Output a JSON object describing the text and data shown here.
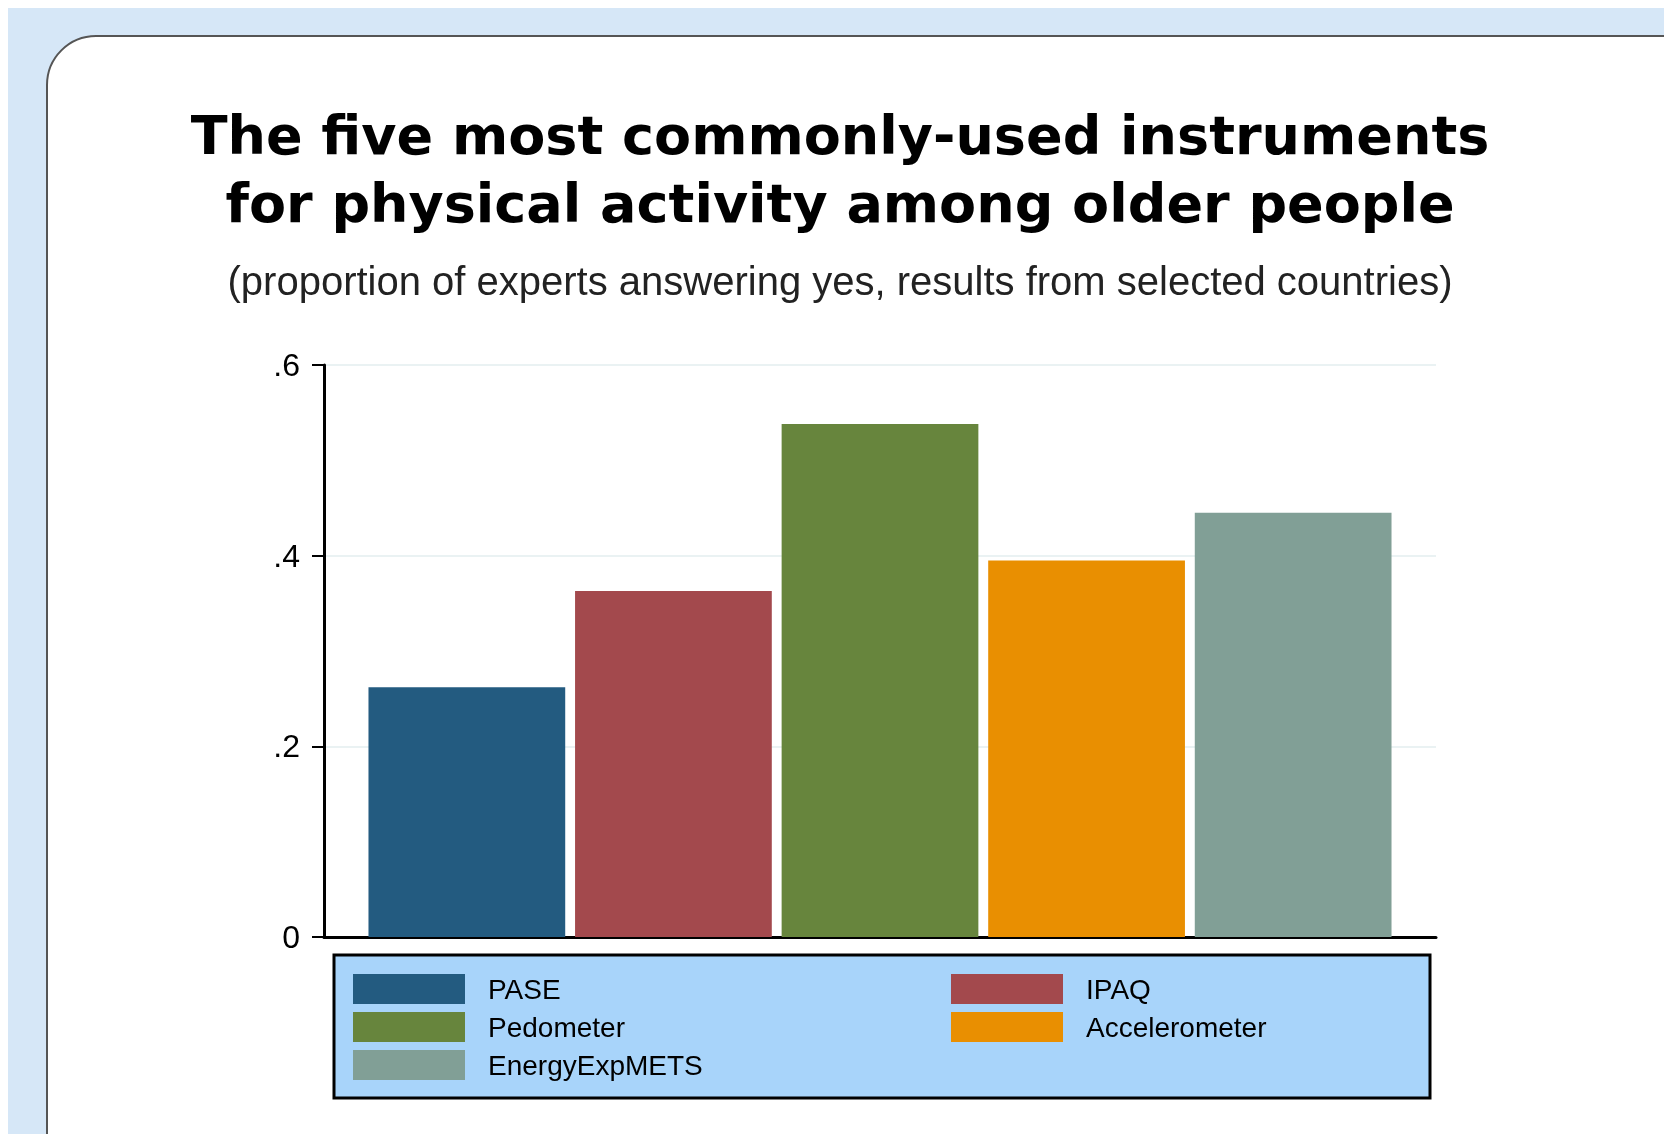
{
  "chart_data": {
    "type": "bar",
    "title": "The five most commonly-used instruments\nfor physical activity among older people",
    "subtitle": "(proportion of experts answering yes, results from selected countries)",
    "categories": [
      null
    ],
    "series": [
      {
        "name": "PASE",
        "color": "#235b80",
        "values": [
          0.262
        ]
      },
      {
        "name": "IPAQ",
        "color": "#a3494d",
        "values": [
          0.363
        ]
      },
      {
        "name": "Pedometer",
        "color": "#67853d",
        "values": [
          0.538
        ]
      },
      {
        "name": "Accelerometer",
        "color": "#e98f01",
        "values": [
          0.395
        ]
      },
      {
        "name": "EnergyExpMETS",
        "color": "#819f96",
        "values": [
          0.445
        ]
      }
    ],
    "ylim": [
      0,
      0.6
    ],
    "yticks": [
      {
        "value": 0,
        "label": "0"
      },
      {
        "value": 0.2,
        "label": ".2"
      },
      {
        "value": 0.4,
        "label": ".4"
      },
      {
        "value": 0.6,
        "label": ".6"
      }
    ],
    "grid": "y",
    "legend": "bottom"
  }
}
